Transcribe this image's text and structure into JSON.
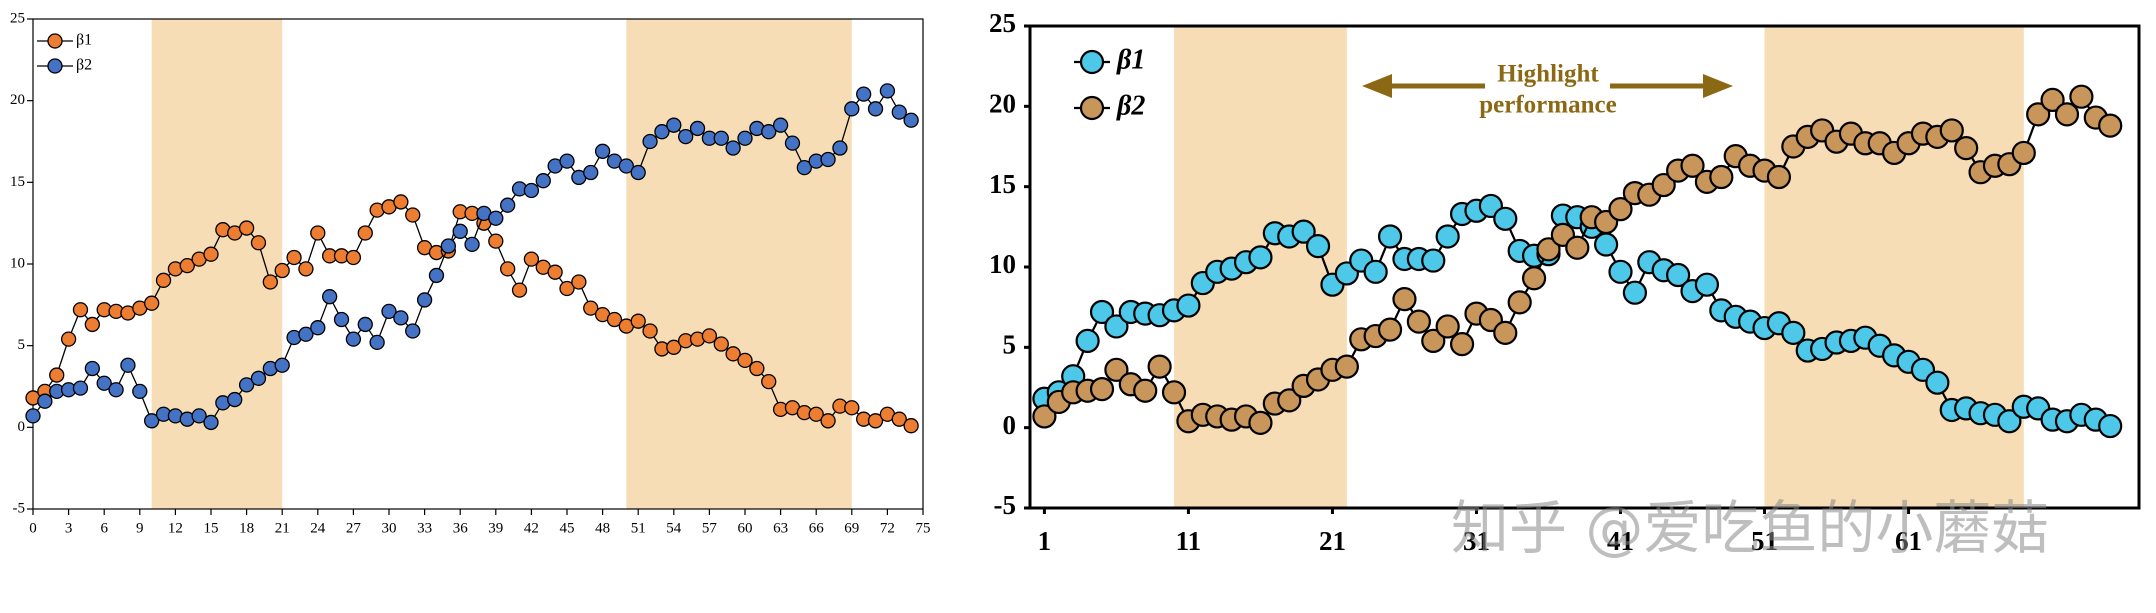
{
  "chart_data": [
    {
      "type": "line",
      "x": [
        0,
        1,
        2,
        3,
        4,
        5,
        6,
        7,
        8,
        9,
        10,
        11,
        12,
        13,
        14,
        15,
        16,
        17,
        18,
        19,
        20,
        21,
        22,
        23,
        24,
        25,
        26,
        27,
        28,
        29,
        30,
        31,
        32,
        33,
        34,
        35,
        36,
        37,
        38,
        39,
        40,
        41,
        42,
        43,
        44,
        45,
        46,
        47,
        48,
        49,
        50,
        51,
        52,
        53,
        54,
        55,
        56,
        57,
        58,
        59,
        60,
        61,
        62,
        63,
        64,
        65,
        66,
        67,
        68,
        69,
        70,
        71,
        72,
        73,
        74
      ],
      "series": [
        {
          "name": "β1",
          "color": "#ED7D31",
          "values": [
            1.8,
            2.2,
            3.2,
            5.4,
            7.2,
            6.3,
            7.2,
            7.1,
            7.0,
            7.3,
            7.6,
            9.0,
            9.7,
            9.9,
            10.3,
            10.6,
            12.1,
            11.9,
            12.2,
            11.3,
            8.9,
            9.6,
            10.4,
            9.7,
            11.9,
            10.5,
            10.5,
            10.4,
            11.9,
            13.3,
            13.5,
            13.8,
            13.0,
            11.0,
            10.7,
            10.8,
            13.2,
            13.1,
            12.5,
            11.4,
            9.7,
            8.4,
            10.3,
            9.8,
            9.5,
            8.5,
            8.9,
            7.3,
            6.9,
            6.6,
            6.2,
            6.5,
            5.9,
            4.8,
            4.9,
            5.3,
            5.4,
            5.6,
            5.1,
            4.5,
            4.1,
            3.6,
            2.8,
            1.1,
            1.2,
            0.9,
            0.8,
            0.4,
            1.3,
            1.2,
            0.5,
            0.4,
            0.8,
            0.5,
            0.1
          ]
        },
        {
          "name": "β2",
          "color": "#4472C4",
          "values": [
            0.7,
            1.6,
            2.2,
            2.3,
            2.4,
            3.6,
            2.7,
            2.3,
            3.8,
            2.2,
            0.4,
            0.8,
            0.7,
            0.5,
            0.7,
            0.3,
            1.5,
            1.7,
            2.6,
            3.0,
            3.6,
            3.8,
            5.5,
            5.7,
            6.1,
            8.0,
            6.6,
            5.4,
            6.3,
            5.2,
            7.1,
            6.7,
            5.9,
            7.8,
            9.3,
            11.1,
            12.0,
            11.2,
            13.1,
            12.8,
            13.6,
            14.6,
            14.5,
            15.1,
            16.0,
            16.3,
            15.3,
            15.6,
            16.9,
            16.3,
            16.0,
            15.6,
            17.5,
            18.1,
            18.5,
            17.8,
            18.3,
            17.7,
            17.7,
            17.1,
            17.7,
            18.3,
            18.1,
            18.5,
            17.4,
            15.9,
            16.3,
            16.4,
            17.1,
            19.5,
            20.4,
            19.5,
            20.6,
            19.3,
            18.8
          ]
        }
      ],
      "xlim": [
        0,
        75
      ],
      "xticks": [
        0,
        3,
        6,
        9,
        12,
        15,
        18,
        21,
        24,
        27,
        30,
        33,
        36,
        39,
        42,
        45,
        48,
        51,
        54,
        57,
        60,
        63,
        66,
        69,
        72,
        75
      ],
      "ylim": [
        -5,
        25
      ],
      "yticks": [
        -5,
        0,
        5,
        10,
        15,
        20,
        25
      ],
      "highlights": [
        [
          10,
          21
        ],
        [
          50,
          69
        ]
      ],
      "highlight_color": "#F7DDB5",
      "legend": "upper left"
    },
    {
      "type": "line",
      "x": [
        1,
        2,
        3,
        4,
        5,
        6,
        7,
        8,
        9,
        10,
        11,
        12,
        13,
        14,
        15,
        16,
        17,
        18,
        19,
        20,
        21,
        22,
        23,
        24,
        25,
        26,
        27,
        28,
        29,
        30,
        31,
        32,
        33,
        34,
        35,
        36,
        37,
        38,
        39,
        40,
        41,
        42,
        43,
        44,
        45,
        46,
        47,
        48,
        49,
        50,
        51,
        52,
        53,
        54,
        55,
        56,
        57,
        58,
        59,
        60,
        61,
        62,
        63,
        64,
        65,
        66,
        67,
        68,
        69,
        70,
        71,
        72,
        73,
        74,
        75
      ],
      "series": [
        {
          "name": "β1",
          "color": "#4DC8E8",
          "values": [
            1.8,
            2.2,
            3.2,
            5.4,
            7.2,
            6.3,
            7.2,
            7.1,
            7.0,
            7.3,
            7.6,
            9.0,
            9.7,
            9.9,
            10.3,
            10.6,
            12.1,
            11.9,
            12.2,
            11.3,
            8.9,
            9.6,
            10.4,
            9.7,
            11.9,
            10.5,
            10.5,
            10.4,
            11.9,
            13.3,
            13.5,
            13.8,
            13.0,
            11.0,
            10.7,
            10.8,
            13.2,
            13.1,
            12.5,
            11.4,
            9.7,
            8.4,
            10.3,
            9.8,
            9.5,
            8.5,
            8.9,
            7.3,
            6.9,
            6.6,
            6.2,
            6.5,
            5.9,
            4.8,
            4.9,
            5.3,
            5.4,
            5.6,
            5.1,
            4.5,
            4.1,
            3.6,
            2.8,
            1.1,
            1.2,
            0.9,
            0.8,
            0.4,
            1.3,
            1.2,
            0.5,
            0.4,
            0.8,
            0.5,
            0.1
          ]
        },
        {
          "name": "β2",
          "color": "#C8965A",
          "values": [
            0.7,
            1.6,
            2.2,
            2.3,
            2.4,
            3.6,
            2.7,
            2.3,
            3.8,
            2.2,
            0.4,
            0.8,
            0.7,
            0.5,
            0.7,
            0.3,
            1.5,
            1.7,
            2.6,
            3.0,
            3.6,
            3.8,
            5.5,
            5.7,
            6.1,
            8.0,
            6.6,
            5.4,
            6.3,
            5.2,
            7.1,
            6.7,
            5.9,
            7.8,
            9.3,
            11.1,
            12.0,
            11.2,
            13.1,
            12.8,
            13.6,
            14.6,
            14.5,
            15.1,
            16.0,
            16.3,
            15.3,
            15.6,
            16.9,
            16.3,
            16.0,
            15.6,
            17.5,
            18.1,
            18.5,
            17.8,
            18.3,
            17.7,
            17.7,
            17.1,
            17.7,
            18.3,
            18.1,
            18.5,
            17.4,
            15.9,
            16.3,
            16.4,
            17.1,
            19.5,
            20.4,
            19.5,
            20.6,
            19.3,
            18.8
          ]
        }
      ],
      "xlim": [
        0,
        77
      ],
      "xticks": [
        1,
        11,
        21,
        31,
        41,
        51,
        61
      ],
      "ylim": [
        -5,
        25
      ],
      "yticks": [
        -5,
        0,
        5,
        10,
        15,
        20,
        25
      ],
      "highlights": [
        [
          10,
          22
        ],
        [
          51,
          69
        ]
      ],
      "highlight_color": "#F7DDB5",
      "legend": "upper left",
      "annotation": [
        "Highlight",
        "performance"
      ],
      "annotation_color": "#8B6914"
    }
  ],
  "watermark": "知乎 @爱吃鱼的小蘑菇"
}
